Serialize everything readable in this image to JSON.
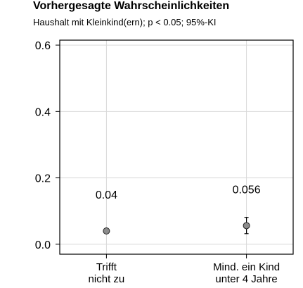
{
  "header": {
    "title": "Vorhergesagte Wahrscheinlichkeiten",
    "subtitle": "Haushalt mit Kleinkind(ern); p < 0.05; 95%-KI"
  },
  "chart_data": {
    "type": "scatter",
    "title": "Vorhergesagte Wahrscheinlichkeiten",
    "subtitle": "Haushalt mit Kleinkind(ern); p < 0.05; 95%-KI",
    "xlabel": "",
    "ylabel": "",
    "categories": [
      [
        "Trifft",
        "nicht zu"
      ],
      [
        "Mind. ein Kind",
        "unter 4 Jahre"
      ]
    ],
    "values": [
      0.04,
      0.056
    ],
    "ci_low": [
      0.04,
      0.032
    ],
    "ci_high": [
      0.04,
      0.081
    ],
    "data_labels": [
      "0.04",
      "0.056"
    ],
    "ylim": [
      -0.03,
      0.615
    ],
    "yticks": [
      0.0,
      0.2,
      0.4,
      0.6
    ],
    "ytick_labels": [
      "0.0",
      "0.2",
      "0.4",
      "0.6"
    ],
    "grid": true,
    "colors": {
      "point_fill": "#8c8c8c",
      "point_stroke": "#222222",
      "grid": "#d9d9d9",
      "frame": "#000000"
    }
  }
}
